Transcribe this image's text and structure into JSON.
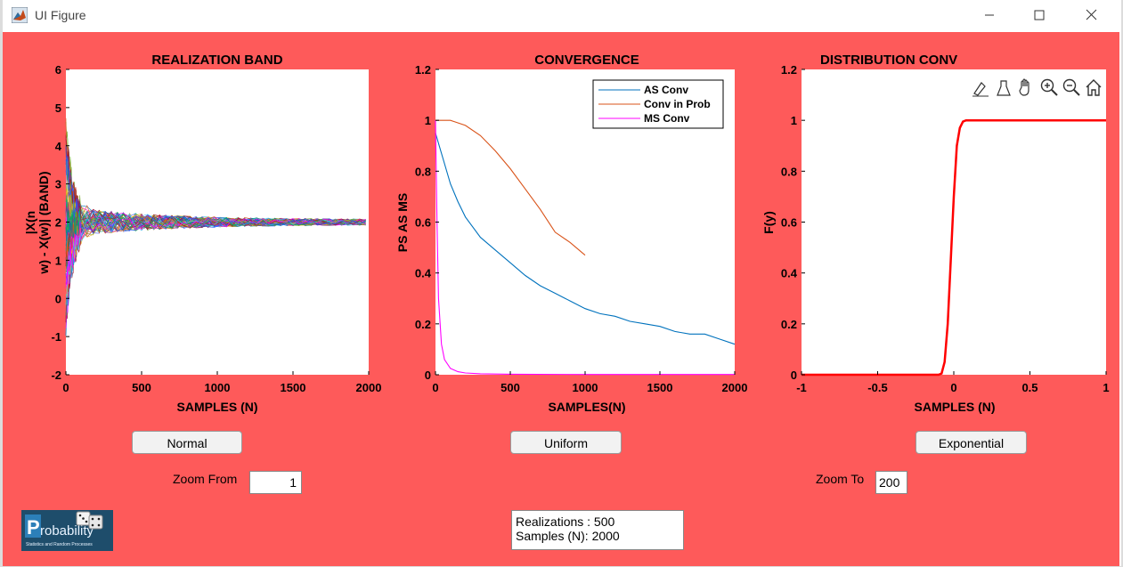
{
  "window": {
    "title": "UI Figure"
  },
  "axes": [
    {
      "title": "REALIZATION BAND",
      "xlabel": "SAMPLES (N)",
      "ylabel_line1": "|X(n",
      "ylabel_line2": "w) - X(w)| (BAND)",
      "xticks": [
        "0",
        "500",
        "1000",
        "1500",
        "2000"
      ],
      "yticks": [
        "-2",
        "-1",
        "0",
        "1",
        "2",
        "3",
        "4",
        "5",
        "6"
      ]
    },
    {
      "title": "CONVERGENCE",
      "xlabel": "SAMPLES(N)",
      "ylabel": "PS AS MS",
      "xticks": [
        "0",
        "500",
        "1000",
        "1500",
        "2000"
      ],
      "yticks": [
        "0",
        "0.2",
        "0.4",
        "0.6",
        "0.8",
        "1",
        "1.2"
      ],
      "legend": [
        "AS Conv",
        "Conv in Prob",
        "MS Conv"
      ]
    },
    {
      "title": "DISTRIBUTION CONV",
      "xlabel": "SAMPLES (N)",
      "ylabel": "F(y)",
      "xticks": [
        "-1",
        "-0.5",
        "0",
        "0.5",
        "1"
      ],
      "yticks": [
        "0",
        "0.2",
        "0.4",
        "0.6",
        "0.8",
        "1",
        "1.2"
      ]
    }
  ],
  "buttons": {
    "normal": "Normal",
    "uniform": "Uniform",
    "exponential": "Exponential"
  },
  "zoom": {
    "from_label": "Zoom From",
    "from_value": "1",
    "to_label": "Zoom To",
    "to_value": "200"
  },
  "info": {
    "line1": "Realizations : 500",
    "line2": "Samples (N): 2000"
  },
  "logo": {
    "text": "Probability",
    "subtext": "Statistics and Random Processes"
  },
  "colors": {
    "background": "#fe5a5a",
    "as_conv": "#0072bd",
    "conv_in_prob": "#d95319",
    "ms_conv": "#ff00ff",
    "cdf": "#ff0000"
  },
  "chart_data": [
    {
      "type": "line",
      "title": "REALIZATION BAND",
      "xlabel": "SAMPLES (N)",
      "ylabel": "|X(n w) - X(w)| (BAND)",
      "xlim": [
        0,
        2000
      ],
      "ylim": [
        -2,
        6
      ],
      "description_series": "many overlapping realizations converging toward 2",
      "converge_value": 2
    },
    {
      "type": "line",
      "title": "CONVERGENCE",
      "xlabel": "SAMPLES(N)",
      "ylabel": "PS AS MS",
      "xlim": [
        0,
        2000
      ],
      "ylim": [
        0,
        1.2
      ],
      "legend_position": "top-right",
      "series": [
        {
          "name": "AS Conv",
          "x": [
            0,
            50,
            100,
            150,
            200,
            300,
            400,
            500,
            600,
            700,
            800,
            900,
            1000,
            1100,
            1200,
            1300,
            1400,
            1500,
            1600,
            1700,
            1800,
            1900,
            2000
          ],
          "y": [
            0.95,
            0.85,
            0.75,
            0.68,
            0.62,
            0.54,
            0.49,
            0.44,
            0.39,
            0.35,
            0.32,
            0.29,
            0.26,
            0.24,
            0.23,
            0.21,
            0.2,
            0.19,
            0.17,
            0.16,
            0.16,
            0.14,
            0.12
          ]
        },
        {
          "name": "Conv in Prob",
          "x": [
            0,
            100,
            200,
            300,
            400,
            500,
            600,
            700,
            800,
            900,
            1000
          ],
          "y": [
            1,
            1,
            0.98,
            0.94,
            0.88,
            0.81,
            0.73,
            0.65,
            0.56,
            0.52,
            0.47
          ]
        },
        {
          "name": "MS Conv",
          "x": [
            0,
            10,
            20,
            40,
            60,
            100,
            150,
            200,
            300,
            500,
            1000,
            2000
          ],
          "y": [
            1,
            0.6,
            0.3,
            0.12,
            0.06,
            0.025,
            0.012,
            0.007,
            0.004,
            0.002,
            0.001,
            0.001
          ]
        }
      ]
    },
    {
      "type": "line",
      "title": "DISTRIBUTION CONV",
      "xlabel": "SAMPLES (N)",
      "ylabel": "F(y)",
      "xlim": [
        -1,
        1
      ],
      "ylim": [
        0,
        1.2
      ],
      "series": [
        {
          "name": "",
          "x": [
            -1,
            -0.1,
            -0.08,
            -0.06,
            -0.04,
            -0.02,
            0,
            0.02,
            0.04,
            0.06,
            0.08,
            1
          ],
          "y": [
            0,
            0,
            0.005,
            0.05,
            0.2,
            0.45,
            0.7,
            0.9,
            0.97,
            0.995,
            1,
            1
          ]
        }
      ]
    }
  ]
}
